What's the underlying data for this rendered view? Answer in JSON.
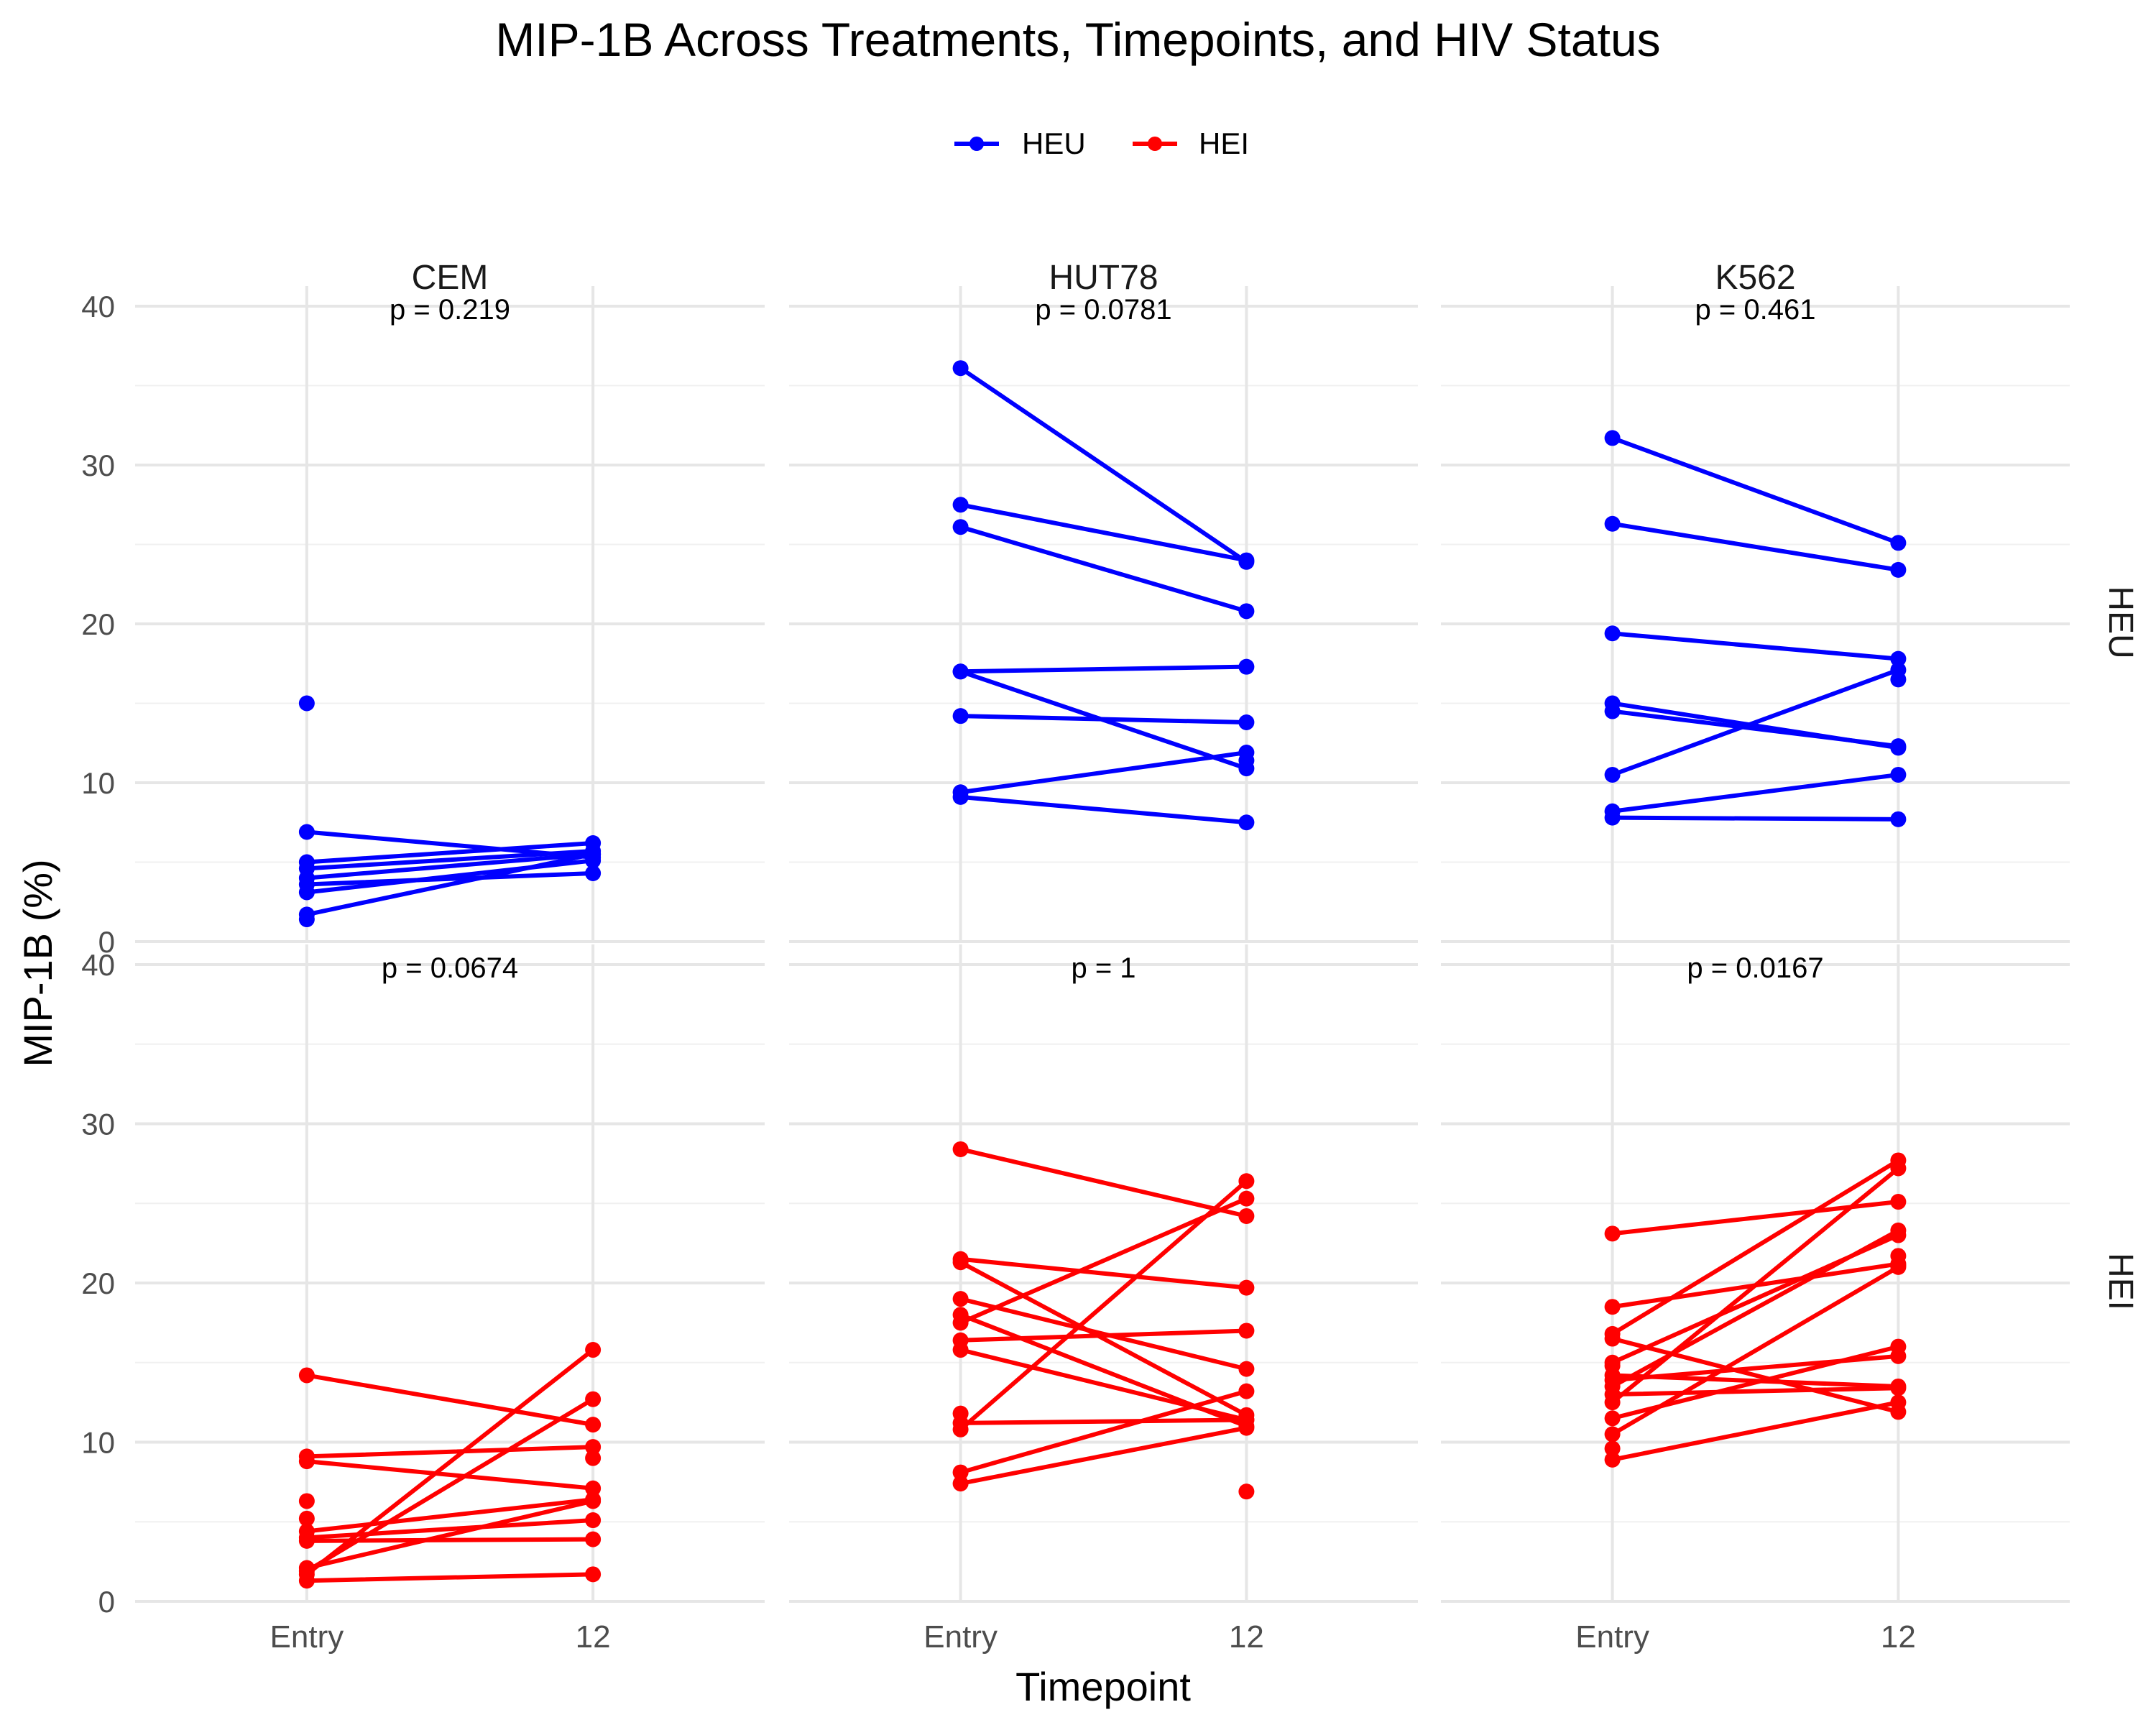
{
  "chart_data": {
    "type": "line",
    "title": "MIP-1B Across Treatments, Timepoints, and HIV Status",
    "xlabel": "Timepoint",
    "ylabel": "MIP-1B (%)",
    "x_categories": [
      "Entry",
      "12"
    ],
    "y_ticks": [
      0,
      10,
      20,
      30,
      40
    ],
    "ylim": [
      0,
      40
    ],
    "grid": true,
    "legend": {
      "position": "top",
      "entries": [
        {
          "label": "HEU",
          "color": "#0000ff"
        },
        {
          "label": "HEI",
          "color": "#ff0000"
        }
      ]
    },
    "columns": [
      "CEM",
      "HUT78",
      "K562"
    ],
    "rows": [
      "HEU",
      "HEI"
    ],
    "panels": [
      {
        "column": "CEM",
        "row": "HEU",
        "p_label": "p = 0.219",
        "pairs": [
          [
            6.9,
            5.3
          ],
          [
            5.0,
            6.2
          ],
          [
            4.6,
            5.7
          ],
          [
            4.0,
            5.5
          ],
          [
            3.6,
            4.3
          ],
          [
            3.1,
            5.1
          ],
          [
            1.7,
            5.5
          ]
        ],
        "singles": [
          [
            15.0,
            null
          ],
          [
            1.4,
            null
          ]
        ]
      },
      {
        "column": "HUT78",
        "row": "HEU",
        "p_label": "p = 0.0781",
        "pairs": [
          [
            36.1,
            23.9
          ],
          [
            27.5,
            24.0
          ],
          [
            26.1,
            20.8
          ],
          [
            17.0,
            17.3
          ],
          [
            17.0,
            10.9
          ],
          [
            14.2,
            13.8
          ],
          [
            9.4,
            11.9
          ],
          [
            9.1,
            7.5
          ]
        ],
        "singles": [
          [
            null,
            11.4
          ]
        ]
      },
      {
        "column": "K562",
        "row": "HEU",
        "p_label": "p = 0.461",
        "pairs": [
          [
            31.7,
            25.1
          ],
          [
            26.3,
            23.4
          ],
          [
            19.4,
            17.8
          ],
          [
            15.0,
            12.2
          ],
          [
            14.5,
            12.3
          ],
          [
            10.5,
            17.1
          ],
          [
            8.2,
            10.5
          ],
          [
            7.8,
            7.7
          ]
        ],
        "singles": [
          [
            null,
            16.5
          ]
        ]
      },
      {
        "column": "CEM",
        "row": "HEI",
        "p_label": "p = 0.0674",
        "pairs": [
          [
            14.2,
            11.1
          ],
          [
            9.1,
            9.7
          ],
          [
            8.8,
            7.1
          ],
          [
            4.4,
            6.4
          ],
          [
            4.0,
            5.1
          ],
          [
            3.8,
            3.9
          ],
          [
            2.1,
            6.3
          ],
          [
            1.9,
            12.7
          ],
          [
            1.7,
            15.8
          ],
          [
            1.3,
            1.7
          ]
        ],
        "singles": [
          [
            6.3,
            null
          ],
          [
            5.2,
            null
          ],
          [
            null,
            9.0
          ]
        ]
      },
      {
        "column": "HUT78",
        "row": "HEI",
        "p_label": "p = 1",
        "pairs": [
          [
            28.4,
            24.2
          ],
          [
            21.5,
            19.7
          ],
          [
            21.3,
            11.7
          ],
          [
            19.0,
            14.6
          ],
          [
            18.0,
            11.0
          ],
          [
            17.5,
            25.3
          ],
          [
            16.4,
            17.0
          ],
          [
            15.8,
            11.4
          ],
          [
            11.2,
            11.4
          ],
          [
            10.8,
            26.4
          ],
          [
            8.1,
            13.2
          ],
          [
            7.4,
            10.9
          ]
        ],
        "singles": [
          [
            11.8,
            null
          ],
          [
            null,
            6.9
          ]
        ]
      },
      {
        "column": "K562",
        "row": "HEI",
        "p_label": "p = 0.0167",
        "pairs": [
          [
            23.1,
            25.1
          ],
          [
            18.5,
            21.2
          ],
          [
            16.8,
            27.7
          ],
          [
            16.5,
            11.9
          ],
          [
            15.0,
            23.0
          ],
          [
            14.2,
            13.5
          ],
          [
            13.9,
            15.4
          ],
          [
            13.5,
            23.3
          ],
          [
            13.0,
            13.4
          ],
          [
            12.5,
            27.2
          ],
          [
            11.5,
            16.0
          ],
          [
            10.5,
            21.0
          ],
          [
            8.9,
            12.5
          ]
        ],
        "singles": [
          [
            9.6,
            null
          ],
          [
            14.8,
            null
          ],
          [
            null,
            21.7
          ],
          [
            null,
            21.1
          ]
        ]
      }
    ]
  }
}
